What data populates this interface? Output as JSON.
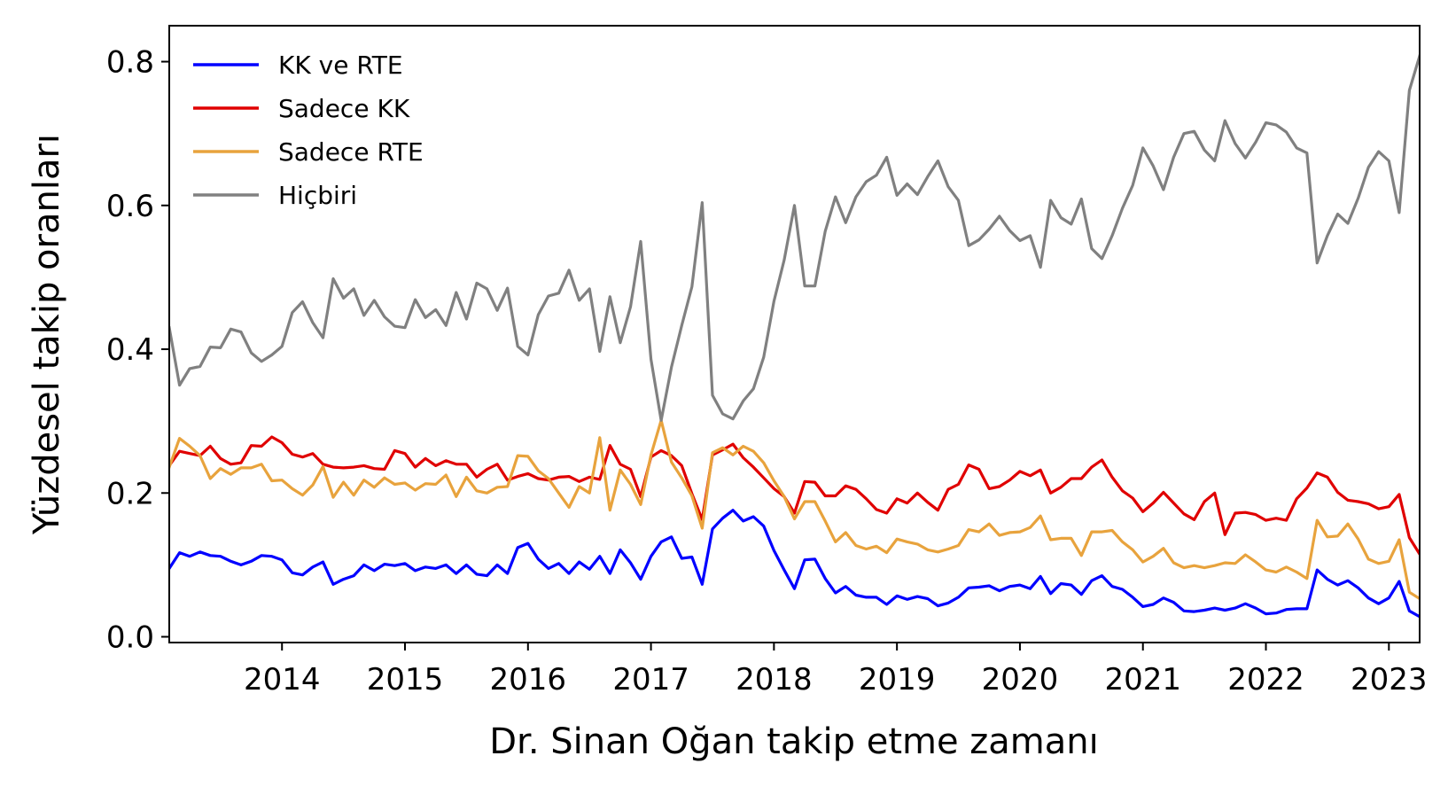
{
  "chart_data": {
    "type": "line",
    "xlabel": "Dr. Sinan Oğan takip etme zamanı",
    "ylabel": "Yüzdesel takip oranları",
    "x_start": "2013-02",
    "x_end": "2023-04",
    "x_tick_labels": [
      "2014",
      "2015",
      "2016",
      "2017",
      "2018",
      "2019",
      "2020",
      "2021",
      "2022",
      "2023"
    ],
    "y_ticks": [
      0.0,
      0.2,
      0.4,
      0.6,
      0.8
    ],
    "y_tick_labels": [
      "0.0",
      "0.2",
      "0.4",
      "0.6",
      "0.8"
    ],
    "ylim": [
      -0.008,
      0.85
    ],
    "grid": false,
    "legend_position": "top-left",
    "series": [
      {
        "name": "KK ve RTE",
        "color": "#0000ff",
        "values": [
          0.095,
          0.117,
          0.112,
          0.118,
          0.113,
          0.112,
          0.105,
          0.1,
          0.105,
          0.113,
          0.112,
          0.107,
          0.089,
          0.086,
          0.097,
          0.104,
          0.073,
          0.08,
          0.085,
          0.1,
          0.092,
          0.101,
          0.099,
          0.102,
          0.092,
          0.097,
          0.095,
          0.1,
          0.088,
          0.1,
          0.087,
          0.085,
          0.1,
          0.088,
          0.124,
          0.13,
          0.108,
          0.095,
          0.102,
          0.088,
          0.104,
          0.094,
          0.112,
          0.088,
          0.121,
          0.103,
          0.08,
          0.112,
          0.132,
          0.139,
          0.109,
          0.111,
          0.073,
          0.15,
          0.165,
          0.176,
          0.161,
          0.167,
          0.154,
          0.12,
          0.093,
          0.067,
          0.107,
          0.108,
          0.081,
          0.061,
          0.07,
          0.058,
          0.055,
          0.055,
          0.045,
          0.057,
          0.052,
          0.056,
          0.053,
          0.043,
          0.047,
          0.055,
          0.068,
          0.069,
          0.071,
          0.064,
          0.07,
          0.072,
          0.067,
          0.084,
          0.06,
          0.074,
          0.072,
          0.059,
          0.078,
          0.085,
          0.07,
          0.066,
          0.055,
          0.042,
          0.045,
          0.054,
          0.048,
          0.036,
          0.035,
          0.037,
          0.04,
          0.037,
          0.04,
          0.046,
          0.04,
          0.032,
          0.033,
          0.038,
          0.039,
          0.039,
          0.093,
          0.08,
          0.072,
          0.078,
          0.068,
          0.054,
          0.046,
          0.054,
          0.077,
          0.036,
          0.028
        ]
      },
      {
        "name": "Sadece KK",
        "color": "#e00000",
        "values": [
          0.238,
          0.258,
          0.255,
          0.252,
          0.265,
          0.248,
          0.24,
          0.242,
          0.266,
          0.265,
          0.278,
          0.27,
          0.254,
          0.25,
          0.255,
          0.24,
          0.236,
          0.235,
          0.236,
          0.238,
          0.234,
          0.233,
          0.259,
          0.255,
          0.236,
          0.248,
          0.238,
          0.245,
          0.24,
          0.24,
          0.222,
          0.233,
          0.24,
          0.218,
          0.223,
          0.227,
          0.22,
          0.218,
          0.222,
          0.223,
          0.216,
          0.222,
          0.219,
          0.266,
          0.24,
          0.233,
          0.195,
          0.25,
          0.259,
          0.252,
          0.238,
          0.199,
          0.163,
          0.253,
          0.26,
          0.268,
          0.249,
          0.236,
          0.221,
          0.206,
          0.195,
          0.172,
          0.216,
          0.215,
          0.196,
          0.196,
          0.21,
          0.205,
          0.192,
          0.177,
          0.172,
          0.192,
          0.186,
          0.2,
          0.187,
          0.176,
          0.205,
          0.212,
          0.239,
          0.233,
          0.206,
          0.209,
          0.218,
          0.23,
          0.224,
          0.232,
          0.2,
          0.208,
          0.22,
          0.22,
          0.236,
          0.246,
          0.222,
          0.203,
          0.193,
          0.174,
          0.186,
          0.201,
          0.186,
          0.171,
          0.163,
          0.188,
          0.2,
          0.142,
          0.172,
          0.173,
          0.17,
          0.162,
          0.165,
          0.162,
          0.192,
          0.207,
          0.228,
          0.222,
          0.201,
          0.19,
          0.188,
          0.185,
          0.178,
          0.181,
          0.198,
          0.138,
          0.115
        ]
      },
      {
        "name": "Sadece RTE",
        "color": "#e8a33d",
        "values": [
          0.236,
          0.276,
          0.265,
          0.252,
          0.22,
          0.234,
          0.226,
          0.235,
          0.235,
          0.24,
          0.217,
          0.218,
          0.206,
          0.197,
          0.211,
          0.237,
          0.194,
          0.215,
          0.197,
          0.218,
          0.208,
          0.221,
          0.212,
          0.214,
          0.204,
          0.213,
          0.212,
          0.225,
          0.195,
          0.222,
          0.203,
          0.2,
          0.208,
          0.209,
          0.252,
          0.251,
          0.231,
          0.22,
          0.2,
          0.18,
          0.209,
          0.2,
          0.277,
          0.176,
          0.232,
          0.212,
          0.184,
          0.253,
          0.301,
          0.243,
          0.221,
          0.196,
          0.151,
          0.256,
          0.263,
          0.253,
          0.265,
          0.258,
          0.242,
          0.217,
          0.195,
          0.164,
          0.188,
          0.188,
          0.161,
          0.132,
          0.145,
          0.127,
          0.122,
          0.126,
          0.117,
          0.136,
          0.132,
          0.129,
          0.121,
          0.118,
          0.122,
          0.127,
          0.149,
          0.146,
          0.157,
          0.141,
          0.145,
          0.146,
          0.152,
          0.168,
          0.135,
          0.137,
          0.137,
          0.113,
          0.146,
          0.146,
          0.148,
          0.132,
          0.121,
          0.104,
          0.112,
          0.123,
          0.103,
          0.096,
          0.099,
          0.096,
          0.099,
          0.103,
          0.102,
          0.114,
          0.104,
          0.093,
          0.09,
          0.097,
          0.09,
          0.081,
          0.162,
          0.139,
          0.14,
          0.157,
          0.136,
          0.108,
          0.102,
          0.105,
          0.135,
          0.062,
          0.053
        ]
      },
      {
        "name": "Hiçbiri",
        "color": "#808080",
        "values": [
          0.43,
          0.35,
          0.373,
          0.376,
          0.403,
          0.402,
          0.428,
          0.424,
          0.395,
          0.383,
          0.392,
          0.404,
          0.451,
          0.466,
          0.437,
          0.416,
          0.498,
          0.471,
          0.484,
          0.447,
          0.468,
          0.445,
          0.432,
          0.43,
          0.469,
          0.444,
          0.455,
          0.433,
          0.479,
          0.442,
          0.492,
          0.484,
          0.454,
          0.485,
          0.404,
          0.392,
          0.448,
          0.474,
          0.478,
          0.51,
          0.468,
          0.484,
          0.397,
          0.473,
          0.409,
          0.459,
          0.55,
          0.386,
          0.301,
          0.375,
          0.433,
          0.487,
          0.604,
          0.336,
          0.31,
          0.303,
          0.328,
          0.345,
          0.389,
          0.467,
          0.524,
          0.6,
          0.488,
          0.488,
          0.564,
          0.612,
          0.576,
          0.612,
          0.633,
          0.642,
          0.667,
          0.614,
          0.63,
          0.615,
          0.64,
          0.662,
          0.626,
          0.607,
          0.544,
          0.552,
          0.567,
          0.585,
          0.565,
          0.551,
          0.558,
          0.514,
          0.607,
          0.583,
          0.574,
          0.609,
          0.54,
          0.526,
          0.558,
          0.596,
          0.628,
          0.68,
          0.655,
          0.622,
          0.667,
          0.7,
          0.703,
          0.677,
          0.662,
          0.718,
          0.686,
          0.666,
          0.688,
          0.715,
          0.712,
          0.702,
          0.68,
          0.673,
          0.52,
          0.558,
          0.588,
          0.575,
          0.61,
          0.653,
          0.675,
          0.662,
          0.59,
          0.76,
          0.808
        ]
      }
    ]
  }
}
